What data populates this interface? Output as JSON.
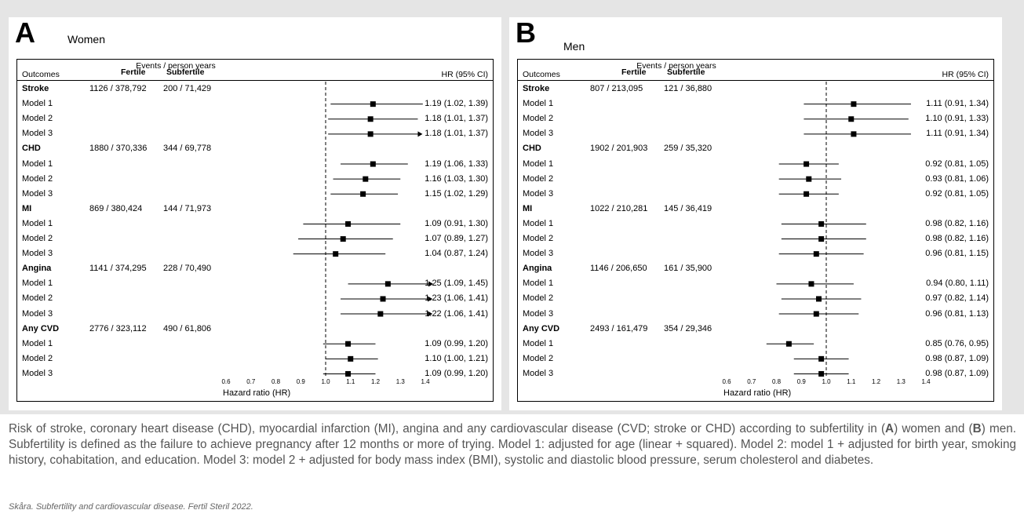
{
  "panels": [
    {
      "id": "A",
      "letter": "A",
      "subtitle": "Women",
      "headers": {
        "outcomes": "Outcomes",
        "events": "Events / person years",
        "fertile": "Fertile",
        "subfertile": "Subfertile",
        "hr": "HR (95% CI)"
      },
      "axis_title": "Hazard ratio (HR)"
    },
    {
      "id": "B",
      "letter": "B",
      "subtitle": "Men",
      "headers": {
        "outcomes": "Outcomes",
        "events": "Events / person years",
        "fertile": "Fertile",
        "subfertile": "Subfertile",
        "hr": "HR (95% CI)"
      },
      "axis_title": "Hazard ratio (HR)"
    }
  ],
  "chart_data": [
    {
      "type": "forest",
      "panel": "A",
      "title": "Women",
      "xlabel": "Hazard ratio (HR)",
      "xlim": [
        0.6,
        1.4
      ],
      "xticks": [
        0.6,
        0.7,
        0.8,
        0.9,
        1.0,
        1.1,
        1.2,
        1.3,
        1.4
      ],
      "xtick_labels": [
        "0.6",
        "0.7",
        "0.8",
        "0.9",
        "1.0",
        "1.1",
        "1.2",
        "1.3",
        "1.4"
      ],
      "reference_line": 1.0,
      "rows": [
        {
          "kind": "group",
          "label": "Stroke",
          "fertile": "1126 / 378,792",
          "subfertile": "200 / 71,429"
        },
        {
          "kind": "model",
          "label": "Model 1",
          "hr": 1.19,
          "lo": 1.02,
          "hi": 1.39,
          "text": "1.19 (1.02, 1.39)"
        },
        {
          "kind": "model",
          "label": "Model 2",
          "hr": 1.18,
          "lo": 1.01,
          "hi": 1.37,
          "text": "1.18 (1.01, 1.37)"
        },
        {
          "kind": "model",
          "label": "Model 3",
          "hr": 1.18,
          "lo": 1.01,
          "hi": 1.37,
          "text": "1.18 (1.01, 1.37)",
          "arrow_right": true
        },
        {
          "kind": "group",
          "label": "CHD",
          "fertile": "1880 / 370,336",
          "subfertile": "344 / 69,778"
        },
        {
          "kind": "model",
          "label": "Model 1",
          "hr": 1.19,
          "lo": 1.06,
          "hi": 1.33,
          "text": "1.19 (1.06, 1.33)"
        },
        {
          "kind": "model",
          "label": "Model 2",
          "hr": 1.16,
          "lo": 1.03,
          "hi": 1.3,
          "text": "1.16 (1.03, 1.30)"
        },
        {
          "kind": "model",
          "label": "Model 3",
          "hr": 1.15,
          "lo": 1.02,
          "hi": 1.29,
          "text": "1.15 (1.02, 1.29)"
        },
        {
          "kind": "group",
          "label": "MI",
          "fertile": "869 / 380,424",
          "subfertile": "144 / 71,973"
        },
        {
          "kind": "model",
          "label": "Model 1",
          "hr": 1.09,
          "lo": 0.91,
          "hi": 1.3,
          "text": "1.09 (0.91, 1.30)"
        },
        {
          "kind": "model",
          "label": "Model 2",
          "hr": 1.07,
          "lo": 0.89,
          "hi": 1.27,
          "text": "1.07 (0.89, 1.27)"
        },
        {
          "kind": "model",
          "label": "Model 3",
          "hr": 1.04,
          "lo": 0.87,
          "hi": 1.24,
          "text": "1.04 (0.87, 1.24)"
        },
        {
          "kind": "group",
          "label": "Angina",
          "fertile": "1141 / 374,295",
          "subfertile": "228 / 70,490"
        },
        {
          "kind": "model",
          "label": "Model 1",
          "hr": 1.25,
          "lo": 1.09,
          "hi": 1.45,
          "text": "1.25 (1.09, 1.45)",
          "arrow_right": true
        },
        {
          "kind": "model",
          "label": "Model 2",
          "hr": 1.23,
          "lo": 1.06,
          "hi": 1.41,
          "text": "1.23 (1.06, 1.41)",
          "arrow_right": true
        },
        {
          "kind": "model",
          "label": "Model 3",
          "hr": 1.22,
          "lo": 1.06,
          "hi": 1.41,
          "text": "1.22 (1.06, 1.41)",
          "arrow_right": true
        },
        {
          "kind": "group",
          "label": "Any CVD",
          "fertile": "2776 / 323,112",
          "subfertile": "490 / 61,806"
        },
        {
          "kind": "model",
          "label": "Model 1",
          "hr": 1.09,
          "lo": 0.99,
          "hi": 1.2,
          "text": "1.09 (0.99, 1.20)"
        },
        {
          "kind": "model",
          "label": "Model 2",
          "hr": 1.1,
          "lo": 1.0,
          "hi": 1.21,
          "text": "1.10 (1.00, 1.21)"
        },
        {
          "kind": "model",
          "label": "Model 3",
          "hr": 1.09,
          "lo": 0.99,
          "hi": 1.2,
          "text": "1.09 (0.99, 1.20)"
        }
      ]
    },
    {
      "type": "forest",
      "panel": "B",
      "title": "Men",
      "xlabel": "Hazard ratio (HR)",
      "xlim": [
        0.6,
        1.4
      ],
      "xticks": [
        0.6,
        0.7,
        0.8,
        0.9,
        1.0,
        1.1,
        1.2,
        1.3,
        1.4
      ],
      "xtick_labels": [
        "0.6",
        "0.7",
        "0.8",
        "0.9",
        "1.0",
        "1.1",
        "1.2",
        "1.3",
        "1.4"
      ],
      "reference_line": 1.0,
      "rows": [
        {
          "kind": "group",
          "label": "Stroke",
          "fertile": "807 / 213,095",
          "subfertile": "121 / 36,880"
        },
        {
          "kind": "model",
          "label": "Model 1",
          "hr": 1.11,
          "lo": 0.91,
          "hi": 1.34,
          "text": "1.11 (0.91, 1.34)"
        },
        {
          "kind": "model",
          "label": "Model 2",
          "hr": 1.1,
          "lo": 0.91,
          "hi": 1.33,
          "text": "1.10 (0.91, 1.33)"
        },
        {
          "kind": "model",
          "label": "Model 3",
          "hr": 1.11,
          "lo": 0.91,
          "hi": 1.34,
          "text": "1.11 (0.91, 1.34)"
        },
        {
          "kind": "group",
          "label": "CHD",
          "fertile": "1902 / 201,903",
          "subfertile": "259 / 35,320"
        },
        {
          "kind": "model",
          "label": "Model 1",
          "hr": 0.92,
          "lo": 0.81,
          "hi": 1.05,
          "text": "0.92 (0.81, 1.05)"
        },
        {
          "kind": "model",
          "label": "Model 2",
          "hr": 0.93,
          "lo": 0.81,
          "hi": 1.06,
          "text": "0.93 (0.81, 1.06)"
        },
        {
          "kind": "model",
          "label": "Model 3",
          "hr": 0.92,
          "lo": 0.81,
          "hi": 1.05,
          "text": "0.92 (0.81, 1.05)"
        },
        {
          "kind": "group",
          "label": "MI",
          "fertile": "1022 / 210,281",
          "subfertile": "145 / 36,419"
        },
        {
          "kind": "model",
          "label": "Model 1",
          "hr": 0.98,
          "lo": 0.82,
          "hi": 1.16,
          "text": "0.98 (0.82, 1.16)"
        },
        {
          "kind": "model",
          "label": "Model 2",
          "hr": 0.98,
          "lo": 0.82,
          "hi": 1.16,
          "text": "0.98 (0.82, 1.16)"
        },
        {
          "kind": "model",
          "label": "Model 3",
          "hr": 0.96,
          "lo": 0.81,
          "hi": 1.15,
          "text": "0.96 (0.81, 1.15)"
        },
        {
          "kind": "group",
          "label": "Angina",
          "fertile": "1146 / 206,650",
          "subfertile": "161 / 35,900"
        },
        {
          "kind": "model",
          "label": "Model 1",
          "hr": 0.94,
          "lo": 0.8,
          "hi": 1.11,
          "text": "0.94 (0.80, 1.11)"
        },
        {
          "kind": "model",
          "label": "Model 2",
          "hr": 0.97,
          "lo": 0.82,
          "hi": 1.14,
          "text": "0.97 (0.82, 1.14)"
        },
        {
          "kind": "model",
          "label": "Model 3",
          "hr": 0.96,
          "lo": 0.81,
          "hi": 1.13,
          "text": "0.96 (0.81, 1.13)"
        },
        {
          "kind": "group",
          "label": "Any CVD",
          "fertile": "2493 / 161,479",
          "subfertile": "354 / 29,346"
        },
        {
          "kind": "model",
          "label": "Model 1",
          "hr": 0.85,
          "lo": 0.76,
          "hi": 0.95,
          "text": "0.85 (0.76, 0.95)"
        },
        {
          "kind": "model",
          "label": "Model 2",
          "hr": 0.98,
          "lo": 0.87,
          "hi": 1.09,
          "text": "0.98 (0.87, 1.09)"
        },
        {
          "kind": "model",
          "label": "Model 3",
          "hr": 0.98,
          "lo": 0.87,
          "hi": 1.09,
          "text": "0.98 (0.87, 1.09)"
        }
      ]
    }
  ],
  "caption": {
    "text": "Risk of stroke, coronary heart disease (CHD), myocardial infarction (MI), angina and any cardiovascular disease (CVD; stroke or CHD) according to subfertility in (",
    "bold_a": "A",
    "mid": ") women and (",
    "bold_b": "B",
    "rest": ") men. Subfertility is defined as the failure to achieve pregnancy after 12 months or more of trying. Model 1: adjusted for age (linear + squared). Model 2: model 1 + adjusted for birth year, smoking history, cohabitation, and education. Model 3: model 2 + adjusted for body mass index (BMI), systolic and diastolic blood pressure, serum cholesterol and diabetes."
  },
  "source": "Skåra. Subfertility and cardiovascular disease. Fertil Steril 2022.",
  "colors": {
    "band": "#e5e5e5",
    "caption_text": "#555555",
    "marks": "#000000"
  }
}
